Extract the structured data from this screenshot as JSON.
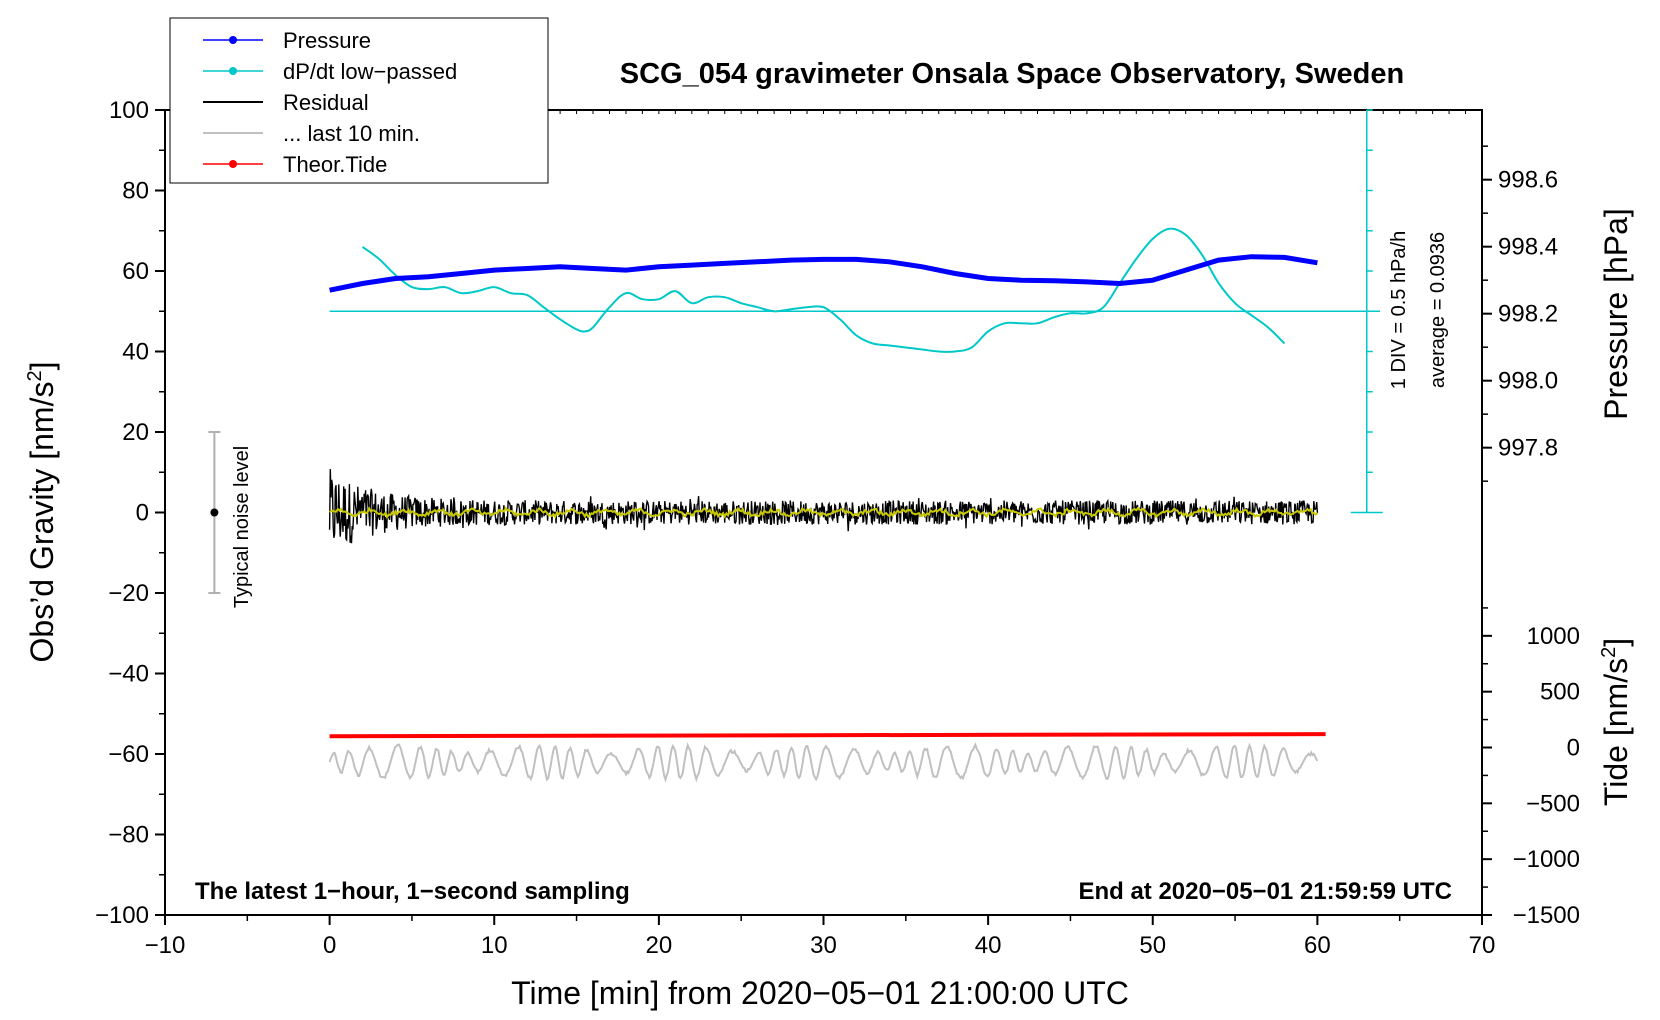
{
  "chart_data": {
    "type": "line",
    "title": "SCG_054 gravimeter Onsala Space Observatory, Sweden",
    "xlabel": "Time [min] from 2020−05−01 21:00:00 UTC",
    "xlim": [
      -10,
      70
    ],
    "xticks": [
      -10,
      0,
      10,
      20,
      30,
      40,
      50,
      60,
      70
    ],
    "xtick_labels": [
      "−10",
      "0",
      "10",
      "20",
      "30",
      "40",
      "50",
      "60",
      "70"
    ],
    "left_axis": {
      "label_main": "Obs’d Gravity [nm/s",
      "label_sup": "2",
      "label_end": "]",
      "ylim": [
        -100,
        100
      ],
      "ticks": [
        -100,
        -80,
        -60,
        -40,
        -20,
        0,
        20,
        40,
        60,
        80,
        100
      ],
      "tick_labels": [
        "−100",
        "−80",
        "−60",
        "−40",
        "−20",
        "0",
        "20",
        "40",
        "60",
        "80",
        "100"
      ]
    },
    "pressure_axis": {
      "label": "Pressure [hPa]",
      "range_hpa": [
        997.608,
        998.808
      ],
      "ticks": [
        997.8,
        998.0,
        998.2,
        998.4,
        998.6
      ],
      "tick_labels": [
        "997.8",
        "998.0",
        "998.2",
        "998.4",
        "998.6"
      ]
    },
    "tide_axis": {
      "label_main": "Tide [nm/s",
      "label_sup": "2",
      "label_end": "]",
      "range": [
        -1500,
        1500
      ],
      "ticks": [
        -1500,
        -1000,
        -500,
        0,
        500,
        1000
      ],
      "tick_labels": [
        "−1500",
        "−1000",
        "−500",
        "0",
        "500",
        "1000"
      ]
    },
    "series": [
      {
        "name": "Pressure",
        "axis": "pressure",
        "color": "#0000ff",
        "x": [
          0,
          2,
          4,
          6,
          8,
          10,
          12,
          14,
          16,
          18,
          20,
          22,
          24,
          26,
          28,
          30,
          32,
          34,
          36,
          38,
          40,
          42,
          44,
          46,
          48,
          50,
          52,
          54,
          56,
          58,
          60
        ],
        "values": [
          998.27,
          998.29,
          998.305,
          998.31,
          998.32,
          998.33,
          998.335,
          998.34,
          998.335,
          998.33,
          998.34,
          998.345,
          998.35,
          998.355,
          998.36,
          998.362,
          998.362,
          998.355,
          998.34,
          998.32,
          998.305,
          998.3,
          998.298,
          998.295,
          998.29,
          998.3,
          998.33,
          998.36,
          998.37,
          998.368,
          998.352
        ]
      },
      {
        "name": "dP/dt low−passed",
        "axis": "gravity",
        "color": "#00c8c8",
        "x": [
          2,
          3,
          4,
          5,
          6,
          7,
          8,
          9,
          10,
          11,
          12,
          13,
          14,
          15,
          15.5,
          16,
          17,
          18,
          19,
          20,
          21,
          22,
          23,
          24,
          25,
          26,
          27,
          28,
          29,
          30,
          31,
          32,
          33,
          34,
          35,
          36,
          37,
          38,
          39,
          40,
          41,
          42,
          43,
          44,
          45,
          46,
          47,
          48,
          49,
          50,
          51,
          52,
          53,
          54,
          55,
          56,
          57,
          58
        ],
        "values": [
          66,
          63,
          59,
          56,
          55.5,
          56,
          54.5,
          55,
          56,
          54.5,
          54,
          51,
          48,
          45.5,
          45,
          46,
          51,
          54.5,
          53,
          53,
          55,
          52,
          53.5,
          53.5,
          52,
          51,
          50,
          50.5,
          51,
          51,
          48,
          44,
          42,
          41.5,
          41,
          40.5,
          40,
          40,
          41,
          45,
          47,
          47,
          47,
          48.5,
          49.5,
          49.5,
          51,
          57,
          63,
          68,
          70.5,
          69,
          64,
          57,
          52,
          49,
          46,
          42
        ]
      },
      {
        "name": "Residual",
        "axis": "gravity",
        "color": "#000000",
        "x_range": [
          0,
          60
        ],
        "envelope": {
          "start_amplitude": 11,
          "steady_amplitude": 3
        }
      },
      {
        "name": "... last 10 min.",
        "axis": "gravity",
        "color": "#c0c0c0",
        "x_range": [
          0,
          60
        ],
        "offset": -62,
        "amplitude": 3
      },
      {
        "name": "Theor.Tide",
        "axis": "tide",
        "color": "#ff0000",
        "x": [
          0,
          60.5
        ],
        "values": [
          100,
          120
        ]
      },
      {
        "name": "Residual (smoothed)",
        "axis": "gravity",
        "color": "#c8c800",
        "x_range": [
          0,
          60
        ],
        "amplitude": 1
      }
    ],
    "legend": {
      "position": "top-left",
      "entries": [
        {
          "label": "Pressure",
          "color": "#0000ff",
          "marker": true
        },
        {
          "label": "dP/dt low−passed",
          "color": "#00c8c8",
          "marker": true
        },
        {
          "label": "Residual",
          "color": "#000000",
          "marker": false
        },
        {
          "label": "... last 10 min.",
          "color": "#c0c0c0",
          "marker": false
        },
        {
          "label": "Theor.Tide",
          "color": "#ff0000",
          "marker": true
        }
      ]
    },
    "reference": {
      "dpdt_zero_level": 50,
      "div_label": "1 DIV = 0.5 hPa/h",
      "average_label": "average = 0.0936",
      "scale_bar_x": 63,
      "scale_bar_range": [
        0,
        100
      ]
    },
    "noise_bar": {
      "label": "Typical noise level",
      "x": -7,
      "center": 0,
      "range": [
        -20,
        20
      ]
    },
    "annotations": {
      "bottom_left": "The latest 1−hour, 1−second sampling",
      "bottom_right": "End at 2020−05−01 21:59:59 UTC"
    },
    "colors": {
      "pressure": "#0000ff",
      "dpdt": "#00c8c8",
      "residual": "#000000",
      "residual_smoothed": "#c8c800",
      "last10": "#c0c0c0",
      "tide": "#ff0000"
    }
  }
}
